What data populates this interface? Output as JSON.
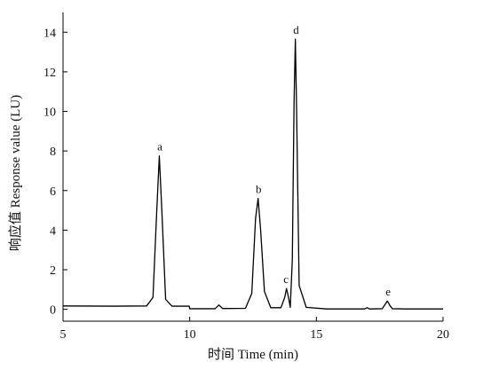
{
  "chart_data": {
    "type": "line",
    "xlabel": "时间 Time (min)",
    "ylabel": "响应值 Response value (LU)",
    "xlim": [
      5,
      20
    ],
    "ylim": [
      -0.6,
      15
    ],
    "xticks": [
      5,
      10,
      15,
      20
    ],
    "yticks": [
      0,
      2,
      4,
      6,
      8,
      10,
      12,
      14
    ],
    "grid": false,
    "series": [
      {
        "x": [
          5.0,
          7.0,
          8.3,
          8.55,
          8.7,
          8.8,
          8.9,
          9.05,
          9.3,
          9.98,
          10.0,
          11.0,
          11.15,
          11.3,
          12.2,
          12.45,
          12.6,
          12.7,
          12.8,
          12.95,
          13.2,
          13.6,
          13.75,
          13.82,
          13.9,
          13.97,
          14.05,
          14.12,
          14.17,
          14.22,
          14.32,
          14.6,
          15.4,
          16.9,
          17.0,
          17.1,
          17.6,
          17.8,
          17.9,
          18.0,
          18.5,
          20.0
        ],
        "y": [
          0.17,
          0.16,
          0.17,
          0.6,
          5.0,
          7.75,
          5.0,
          0.5,
          0.16,
          0.16,
          0.03,
          0.03,
          0.22,
          0.04,
          0.05,
          0.8,
          4.6,
          5.6,
          4.0,
          0.9,
          0.08,
          0.08,
          0.6,
          1.05,
          0.6,
          0.1,
          2.5,
          10.5,
          13.65,
          10.0,
          1.2,
          0.1,
          0.02,
          0.02,
          0.08,
          0.02,
          0.03,
          0.42,
          0.2,
          0.03,
          0.02,
          0.02
        ]
      }
    ],
    "annotations": [
      {
        "text": "a",
        "x": 8.82,
        "y": 7.75
      },
      {
        "text": "b",
        "x": 12.72,
        "y": 5.6
      },
      {
        "text": "c",
        "x": 13.8,
        "y": 1.05
      },
      {
        "text": "d",
        "x": 14.2,
        "y": 13.65
      },
      {
        "text": "e",
        "x": 17.83,
        "y": 0.42
      }
    ]
  }
}
